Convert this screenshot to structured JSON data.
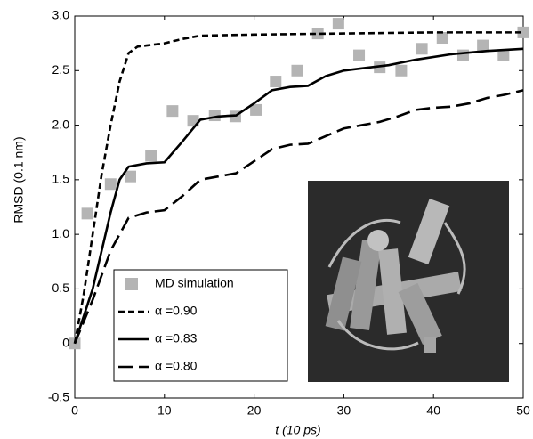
{
  "chart_data": {
    "type": "line",
    "xlabel": "t (10 ps)",
    "ylabel": "RMSD (0.1 nm)",
    "xlim": [
      0,
      50
    ],
    "ylim": [
      -0.5,
      3.0
    ],
    "xticks": [
      0,
      10,
      20,
      30,
      40,
      50
    ],
    "yticks": [
      -0.5,
      0,
      0.5,
      {
        "value": 1,
        "label": "1.0"
      },
      1.5,
      {
        "value": 2,
        "label": "2.0"
      },
      2.5,
      {
        "value": 3,
        "label": "3.0"
      }
    ],
    "legend": "lower left",
    "series": [
      {
        "name": "MD simulation",
        "color": "#b4b4b4",
        "linestyle": "none",
        "marker": "square",
        "x": [
          0,
          1.4,
          4.0,
          6.2,
          8.5,
          10.9,
          13.2,
          15.6,
          17.9,
          20.2,
          22.4,
          24.8,
          27.1,
          29.4,
          31.7,
          34.0,
          36.4,
          38.7,
          41.0,
          43.3,
          45.5,
          47.8,
          50
        ],
        "values": [
          0,
          1.19,
          1.46,
          1.53,
          1.72,
          2.13,
          2.04,
          2.09,
          2.08,
          2.14,
          2.4,
          2.5,
          2.84,
          2.93,
          2.64,
          2.53,
          2.5,
          2.7,
          2.8,
          2.64,
          2.73,
          2.64,
          2.85
        ]
      },
      {
        "name": "α =0.90",
        "color": "#000000",
        "linestyle": "dotted",
        "x": [
          0,
          1,
          2,
          3,
          4,
          5,
          6,
          7,
          8,
          10,
          12,
          14,
          20,
          30,
          40,
          50
        ],
        "values": [
          0,
          0.45,
          1.0,
          1.55,
          2.0,
          2.4,
          2.66,
          2.72,
          2.73,
          2.75,
          2.79,
          2.82,
          2.83,
          2.84,
          2.85,
          2.85
        ]
      },
      {
        "name": "α =0.83",
        "color": "#000000",
        "linestyle": "solid",
        "x": [
          0,
          2,
          4,
          5,
          6,
          8,
          10,
          12,
          14,
          16,
          18,
          20,
          22,
          24,
          26,
          28,
          30,
          32,
          35,
          38,
          42,
          46,
          50
        ],
        "values": [
          0,
          0.5,
          1.2,
          1.5,
          1.62,
          1.65,
          1.66,
          1.85,
          2.05,
          2.08,
          2.09,
          2.2,
          2.32,
          2.35,
          2.36,
          2.45,
          2.5,
          2.52,
          2.55,
          2.6,
          2.65,
          2.68,
          2.7
        ]
      },
      {
        "name": "α =0.80",
        "color": "#000000",
        "linestyle": "dashed",
        "x": [
          0,
          2,
          4,
          6,
          8,
          10,
          12,
          14,
          16,
          18,
          20,
          22,
          24,
          26,
          28,
          30,
          32,
          34,
          36,
          38,
          40,
          42,
          44,
          46,
          48,
          50
        ],
        "values": [
          0,
          0.4,
          0.85,
          1.15,
          1.2,
          1.22,
          1.35,
          1.5,
          1.53,
          1.56,
          1.67,
          1.78,
          1.82,
          1.83,
          1.9,
          1.97,
          2.0,
          2.03,
          2.08,
          2.14,
          2.16,
          2.17,
          2.2,
          2.25,
          2.28,
          2.32
        ]
      }
    ]
  }
}
